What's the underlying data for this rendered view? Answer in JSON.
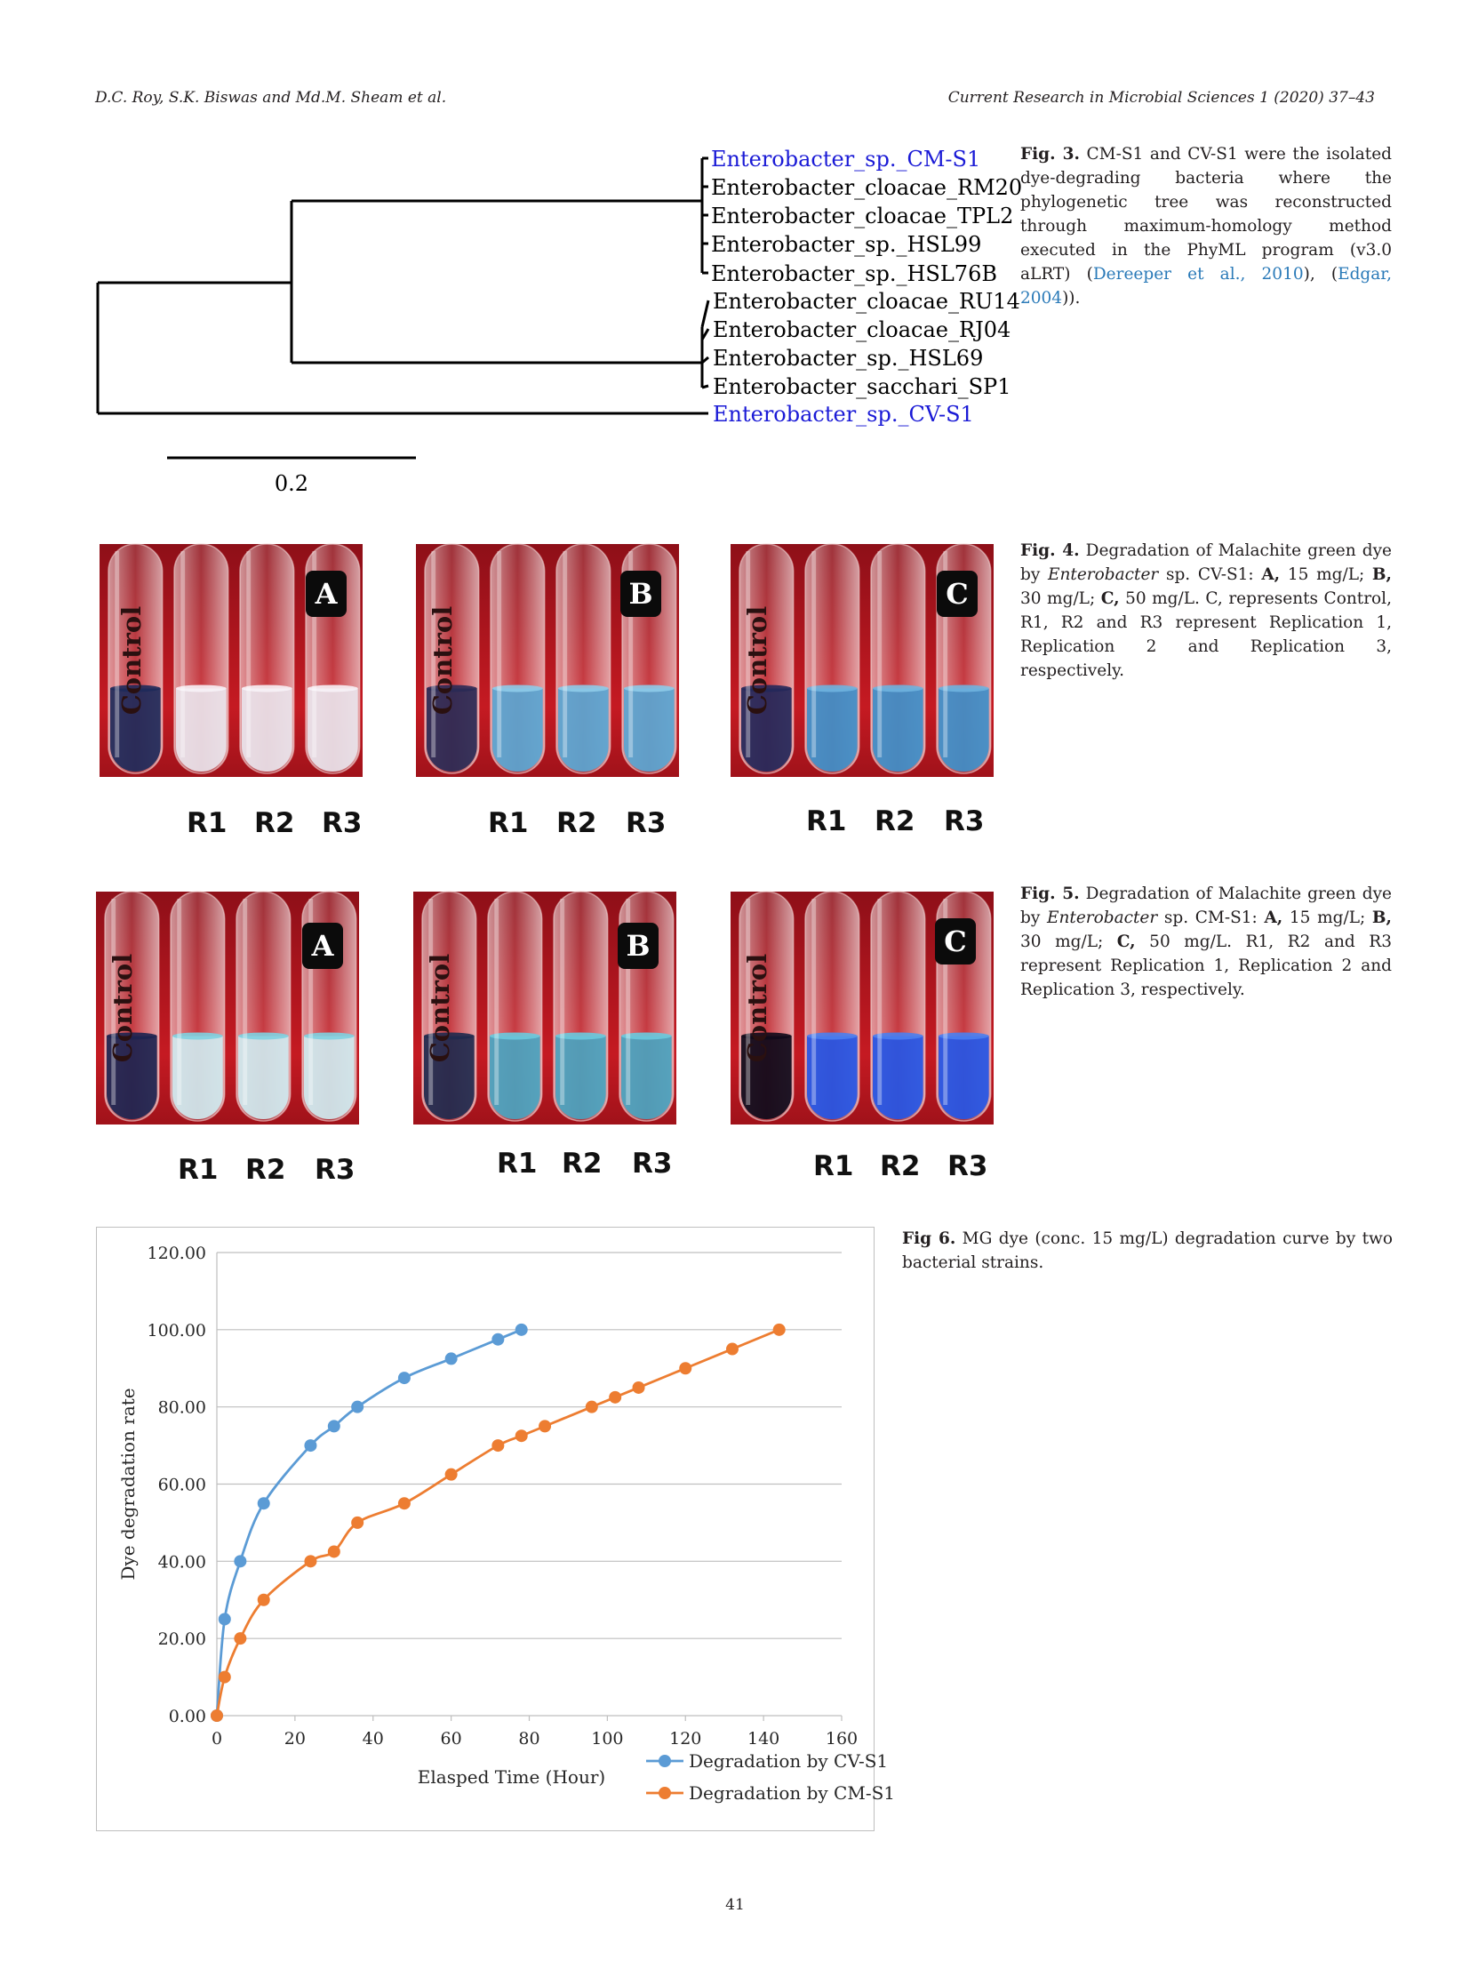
{
  "header": {
    "authors": "D.C. Roy, S.K. Biswas and Md.M. Sheam et al.",
    "journal": "Current Research in Microbial Sciences 1 (2020) 37–43"
  },
  "fig3": {
    "leaves": [
      "Enterobacter_sp._CM-S1",
      "Enterobacter_cloacae_RM20",
      "Enterobacter_cloacae_TPL2",
      "Enterobacter_sp._HSL99",
      "Enterobacter_sp._HSL76B",
      "Enterobacter_cloacae_RU14",
      "Enterobacter_cloacae_RJ04",
      "Enterobacter_sp._HSL69",
      "Enterobacter_sacchari_SP1",
      "Enterobacter_sp._CV-S1"
    ],
    "scale_label": "0.2",
    "highlight_color": "#1a1ad6",
    "caption": {
      "label": "Fig. 3.",
      "text1": " CM-S1 and CV-S1 were the isolated dye-degrading bacteria where the phylogenetic tree was reconstructed through maximum-homology method executed in the PhyML program (v3.0 aLRT) (",
      "cite1": "Dereeper et al., 2010",
      "text2": "), (",
      "cite2": "Edgar, 2004",
      "text3": "))."
    }
  },
  "fig4": {
    "panels": [
      {
        "letter": "A",
        "control": "Control",
        "reps": [
          "R1",
          "R2",
          "R3"
        ]
      },
      {
        "letter": "B",
        "control": "Control",
        "reps": [
          "R1",
          "R2",
          "R3"
        ]
      },
      {
        "letter": "C",
        "control": "Control",
        "reps": [
          "R1",
          "R2",
          "R3"
        ]
      }
    ],
    "caption": {
      "label": "Fig. 4.",
      "t1": " Degradation of Malachite green dye by ",
      "genus": "Enterobacter",
      "t2": " sp. CV-S1: ",
      "a": "A,",
      "t3": " 15 mg/L; ",
      "b": "B,",
      "t4": " 30 mg/L; ",
      "c": "C,",
      "t5": " 50 mg/L. C, represents Control, R1, R2 and R3 represent Replication 1, Replication 2 and Replication 3, respectively."
    }
  },
  "fig5": {
    "panels": [
      {
        "letter": "A",
        "control": "Control",
        "reps": [
          "R1",
          "R2",
          "R3"
        ]
      },
      {
        "letter": "B",
        "control": "Control",
        "reps": [
          "R1",
          "R2",
          "R3"
        ]
      },
      {
        "letter": "C",
        "control": "Control",
        "reps": [
          "R1",
          "R2",
          "R3"
        ]
      }
    ],
    "caption": {
      "label": "Fig. 5.",
      "t1": " Degradation of Malachite green dye by ",
      "genus": "Enterobacter",
      "t2": " sp. CM-S1: ",
      "a": "A,",
      "t3": " 15 mg/L; ",
      "b": "B,",
      "t4": " 30 mg/L; ",
      "c": "C,",
      "t5": " 50 mg/L. R1, R2 and R3 represent Replication 1, Replication 2 and Replication 3, respectively."
    }
  },
  "fig6": {
    "caption": {
      "label": "Fig 6.",
      "text": " MG dye (conc. 15 mg/L) degradation curve by two bacterial strains."
    }
  },
  "chart_data": {
    "type": "line",
    "title": "",
    "xlabel": "Elasped Time (Hour)",
    "ylabel": "Dye degradation rate",
    "xlim": [
      0,
      160
    ],
    "ylim": [
      0,
      120
    ],
    "x_ticks": [
      "0",
      "20",
      "40",
      "60",
      "80",
      "100",
      "120",
      "140",
      "160"
    ],
    "y_ticks": [
      "0.00",
      "20.00",
      "40.00",
      "60.00",
      "80.00",
      "100.00",
      "120.00"
    ],
    "grid": "horizontal",
    "legend_position": "bottom-right",
    "series": [
      {
        "name": "Degradation by CV-S1",
        "color": "#5b9bd5",
        "x": [
          0,
          2,
          6,
          12,
          24,
          30,
          36,
          48,
          60,
          72,
          78
        ],
        "y": [
          0,
          25,
          40,
          55,
          70,
          75,
          80,
          87.5,
          92.5,
          97.5,
          100
        ]
      },
      {
        "name": "Degradation by CM-S1",
        "color": "#ed7d31",
        "x": [
          0,
          2,
          6,
          12,
          24,
          30,
          36,
          48,
          60,
          72,
          78,
          84,
          96,
          102,
          108,
          120,
          132,
          144
        ],
        "y": [
          0,
          10,
          20,
          30,
          40,
          42.5,
          50,
          55,
          62.5,
          70,
          72.5,
          75,
          80,
          82.5,
          85,
          90,
          95,
          100
        ]
      }
    ]
  },
  "page_number": "41"
}
